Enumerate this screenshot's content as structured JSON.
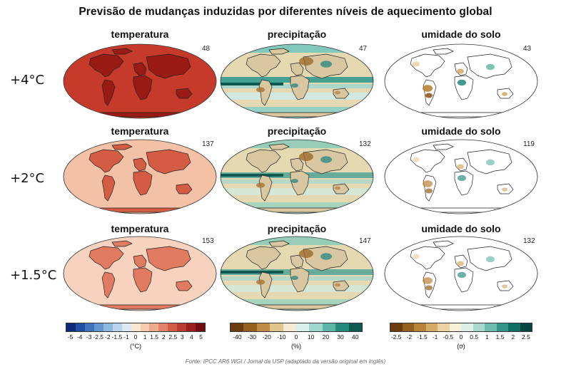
{
  "title": "Previsão de mudanças induzidas por diferentes níveis de aquecimento global",
  "columns": [
    "temperatura",
    "precipitação",
    "umidade do solo"
  ],
  "rows": [
    {
      "label": "+4°C",
      "counts": [
        "48",
        "47",
        "43"
      ]
    },
    {
      "label": "+2°C",
      "counts": [
        "137",
        "132",
        "119"
      ]
    },
    {
      "label": "+1.5°C",
      "counts": [
        "153",
        "147",
        "132"
      ]
    }
  ],
  "legends": [
    {
      "unit": "(°C)",
      "ticks": [
        "-5",
        "-4",
        "-3",
        "-2.5",
        "-2",
        "-1.5",
        "-1",
        "0",
        "1",
        "1.5",
        "2",
        "2.5",
        "3",
        "4",
        "5"
      ],
      "colors": [
        "#0c2c7a",
        "#1f4fa0",
        "#3f73bd",
        "#6497cf",
        "#8db7de",
        "#b7d4ec",
        "#dbe9f5",
        "#fbe6d4",
        "#f7cbb0",
        "#f0a98a",
        "#e3826a",
        "#d35c49",
        "#bb3a32",
        "#9a1f1f",
        "#720d12"
      ]
    },
    {
      "unit": "(%)",
      "ticks": [
        "-40",
        "-30",
        "-20",
        "-10",
        "0",
        "10",
        "20",
        "30",
        "40"
      ],
      "colors": [
        "#6b3d0e",
        "#94601f",
        "#bf8d48",
        "#e1c38c",
        "#f4ead2",
        "#d6efea",
        "#9fd8cc",
        "#5db5a8",
        "#248a7e",
        "#0d5a52"
      ]
    },
    {
      "unit": "(σ)",
      "ticks": [
        "-2.5",
        "-2",
        "-1.5",
        "-1",
        "-0.5",
        "0",
        "0.5",
        "1",
        "1.5",
        "2",
        "2.5"
      ],
      "colors": [
        "#6b3d0e",
        "#94601f",
        "#b98338",
        "#d6ab67",
        "#ecd3a3",
        "#f7efd8",
        "#dcefe9",
        "#a9dad0",
        "#6ebcae",
        "#33948a",
        "#0e6e66",
        "#064640"
      ]
    }
  ],
  "source": "Fonte: IPCC AR6 WGI / Jornal da USP (adaptado da versão original em inglês)",
  "colors": {
    "temp_ocean": [
      "#c53a2a",
      "#f3c1a5",
      "#f6d2bf"
    ],
    "temp_land": [
      "#9a1a14",
      "#d45c45",
      "#e07a60"
    ],
    "precip_ocean": "#e6d9b2",
    "precip_land": "#d8c7a0",
    "soil_bg": "#ffffff"
  }
}
